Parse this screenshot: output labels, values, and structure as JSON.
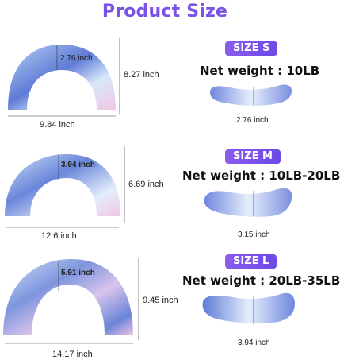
{
  "title": "Product Size",
  "colors": {
    "title": "#7a52e6",
    "badge": "#7a52e6",
    "pillow_primary": "#5f7bd6",
    "pillow_light": "#cfe3f7",
    "pillow_pink": "#f1c6e4"
  },
  "panels": [
    {
      "badge": "SIZE S",
      "net_weight": "Net weight : 10LB",
      "width_label": "9.84 inch",
      "height_label": "8.27 inch",
      "inner_label": "2.76 inch",
      "thickness_label": "2.76 inch"
    },
    {
      "badge": "SIZE M",
      "net_weight": "Net weight : 10LB-20LB",
      "width_label": "12.6 inch",
      "height_label": "6.69 inch",
      "inner_label": "3.94 inch",
      "thickness_label": "3.15 inch"
    },
    {
      "badge": "SIZE L",
      "net_weight": "Net weight : 20LB-35LB",
      "width_label": "14.17 inch",
      "height_label": "9.45 inch",
      "inner_label": "5.91 inch",
      "thickness_label": "3.94 inch"
    }
  ]
}
